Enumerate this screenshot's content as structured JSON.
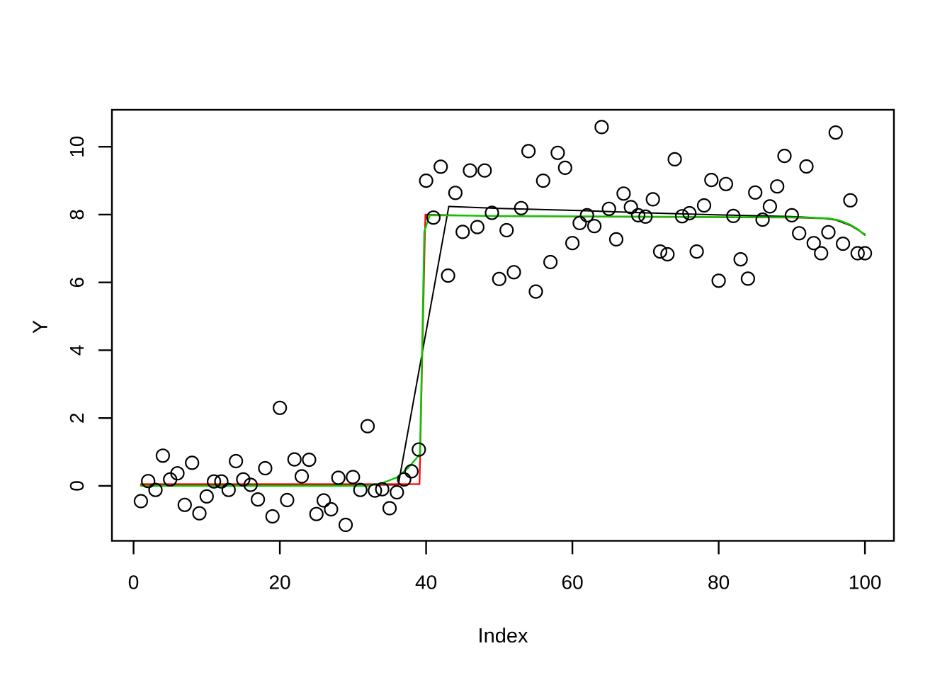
{
  "figure": {
    "background": "#ffffff",
    "xlabel": "Index",
    "ylabel": "Y"
  },
  "chart_data": {
    "type": "scatter",
    "title": "",
    "xlabel": "Index",
    "ylabel": "Y",
    "xlim": [
      -2.96,
      103.96
    ],
    "ylim": [
      -1.62,
      11.09
    ],
    "x_ticks": [
      0,
      20,
      40,
      60,
      80,
      100
    ],
    "y_ticks": [
      0,
      2,
      4,
      6,
      8,
      10
    ],
    "grid": false,
    "legend": "none",
    "point_style": {
      "shape": "open-circle",
      "radius": 9,
      "stroke": "#000000",
      "stroke_width": 2.2
    },
    "points": {
      "x": [
        1,
        2,
        3,
        4,
        5,
        6,
        7,
        8,
        9,
        10,
        11,
        12,
        13,
        14,
        15,
        16,
        17,
        18,
        19,
        20,
        21,
        22,
        23,
        24,
        25,
        26,
        27,
        28,
        29,
        30,
        31,
        32,
        33,
        34,
        35,
        36,
        37,
        38,
        39,
        40,
        41,
        42,
        43,
        44,
        45,
        46,
        47,
        48,
        49,
        50,
        51,
        52,
        53,
        54,
        55,
        56,
        57,
        58,
        59,
        60,
        61,
        62,
        63,
        64,
        65,
        66,
        67,
        68,
        69,
        70,
        71,
        72,
        73,
        74,
        75,
        76,
        77,
        78,
        79,
        80,
        81,
        82,
        83,
        84,
        85,
        86,
        87,
        88,
        89,
        90,
        91,
        92,
        93,
        94,
        95,
        96,
        97,
        98,
        99,
        100
      ],
      "y": [
        -0.45,
        0.14,
        -0.12,
        0.89,
        0.19,
        0.37,
        -0.56,
        0.68,
        -0.81,
        -0.31,
        0.13,
        0.13,
        -0.12,
        0.73,
        0.19,
        0.03,
        -0.4,
        0.52,
        -0.9,
        2.3,
        -0.42,
        0.78,
        0.28,
        0.77,
        -0.83,
        -0.43,
        -0.69,
        0.24,
        -1.15,
        0.26,
        -0.12,
        1.76,
        -0.14,
        -0.1,
        -0.66,
        -0.19,
        0.19,
        0.43,
        1.07,
        9.0,
        7.91,
        9.41,
        6.2,
        8.64,
        7.49,
        9.3,
        7.63,
        9.3,
        8.05,
        6.1,
        7.54,
        6.3,
        8.19,
        9.87,
        5.73,
        9.0,
        6.6,
        9.82,
        9.38,
        7.16,
        7.75,
        7.98,
        7.66,
        10.58,
        8.17,
        7.27,
        8.62,
        8.22,
        7.98,
        7.94,
        8.45,
        6.91,
        6.83,
        9.63,
        7.95,
        8.04,
        6.91,
        8.27,
        9.02,
        6.05,
        8.9,
        7.96,
        6.68,
        6.11,
        8.65,
        7.85,
        8.24,
        8.83,
        9.73,
        7.98,
        7.45,
        9.42,
        7.16,
        6.86,
        7.48,
        10.42,
        7.14,
        8.42,
        6.86,
        6.86
      ]
    },
    "lines": [
      {
        "name": "black-fit-line",
        "color": "#000000",
        "width": 2,
        "x": [
          1,
          36.2,
          43.1,
          50,
          61,
          70,
          80,
          90,
          94,
          96,
          98,
          100
        ],
        "y": [
          0.03,
          0.03,
          8.24,
          8.18,
          8.12,
          8.05,
          7.99,
          7.94,
          7.9,
          7.84,
          7.68,
          7.42
        ]
      },
      {
        "name": "red-step-fit-line",
        "color": "#FF0000",
        "width": 2.2,
        "x": [
          1,
          39.1,
          39.9,
          50,
          70,
          90,
          95,
          96.5,
          98,
          99,
          100
        ],
        "y": [
          0.05,
          0.05,
          8.0,
          7.95,
          7.93,
          7.91,
          7.88,
          7.82,
          7.69,
          7.56,
          7.39
        ]
      },
      {
        "name": "green-smooth-fit-line",
        "color": "#00CD00",
        "width": 2.4,
        "x": [
          1,
          32,
          34,
          36,
          37.5,
          38.7,
          39.15,
          39.45,
          39.75,
          40.5,
          50,
          70,
          90,
          95,
          96.5,
          98,
          99,
          100
        ],
        "y": [
          0.0,
          0.0,
          0.08,
          0.25,
          0.52,
          0.82,
          0.95,
          4.0,
          7.5,
          7.98,
          7.96,
          7.94,
          7.92,
          7.89,
          7.83,
          7.7,
          7.57,
          7.4
        ]
      }
    ],
    "axis_style": {
      "tick_label_size": 28,
      "axis_title_size": 29,
      "tick_length": 19,
      "box_color": "#000000",
      "box_width": 2.4
    }
  }
}
